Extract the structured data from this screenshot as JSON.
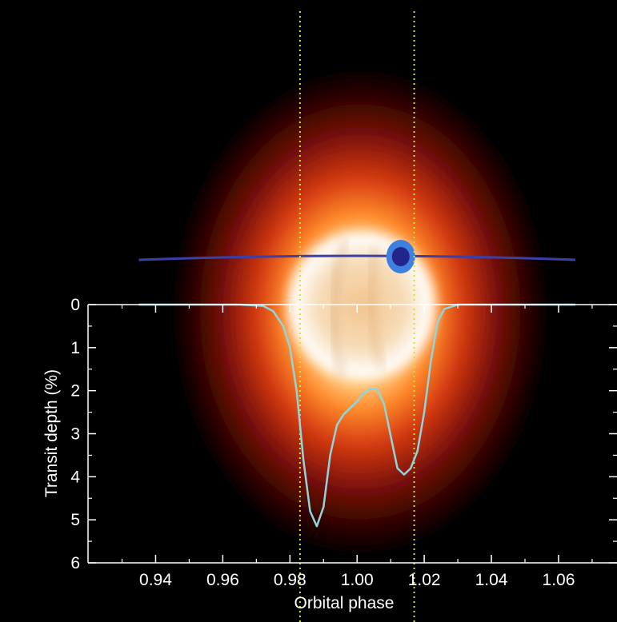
{
  "chart_data": {
    "type": "line",
    "title": "",
    "xlabel": "Orbital phase",
    "ylabel": "Transit depth (%)",
    "xlim": [
      0.925,
      1.075
    ],
    "ylim": [
      0,
      6
    ],
    "y_inverted": true,
    "x_ticks": [
      0.94,
      0.96,
      0.98,
      1.0,
      1.02,
      1.04,
      1.06
    ],
    "x_tick_labels": [
      "0.94",
      "0.96",
      "0.98",
      "1.00",
      "1.02",
      "1.04",
      "1.06"
    ],
    "y_ticks": [
      0,
      1,
      2,
      3,
      4,
      5,
      6
    ],
    "y_tick_labels": [
      "0",
      "1",
      "2",
      "3",
      "4",
      "5",
      "6"
    ],
    "series": [
      {
        "color": "#8fd6dc",
        "x": [
          0.935,
          0.965,
          0.972,
          0.975,
          0.978,
          0.98,
          0.982,
          0.984,
          0.986,
          0.988,
          0.99,
          0.992,
          0.994,
          0.996,
          0.998,
          1.0,
          1.002,
          1.004,
          1.006,
          1.008,
          1.01,
          1.012,
          1.014,
          1.016,
          1.018,
          1.02,
          1.022,
          1.024,
          1.026,
          1.03,
          1.065
        ],
        "y": [
          0.0,
          0.0,
          0.03,
          0.15,
          0.5,
          1.0,
          2.0,
          3.6,
          4.8,
          5.15,
          4.7,
          3.5,
          2.8,
          2.55,
          2.4,
          2.25,
          2.05,
          1.95,
          1.97,
          2.3,
          3.05,
          3.8,
          3.95,
          3.8,
          3.4,
          2.5,
          1.3,
          0.4,
          0.1,
          0.0,
          0.0
        ]
      }
    ],
    "vertical_lines": {
      "x": [
        0.983,
        1.017
      ],
      "color": "#c8e635",
      "style": "dotted"
    },
    "orbit_marker": {
      "x_start": 0.935,
      "x_end": 1.065,
      "planet_x": 1.013,
      "color": "#3b3fa6",
      "planet_color": "#2f4bd0"
    },
    "grid": false,
    "legend": "none"
  }
}
